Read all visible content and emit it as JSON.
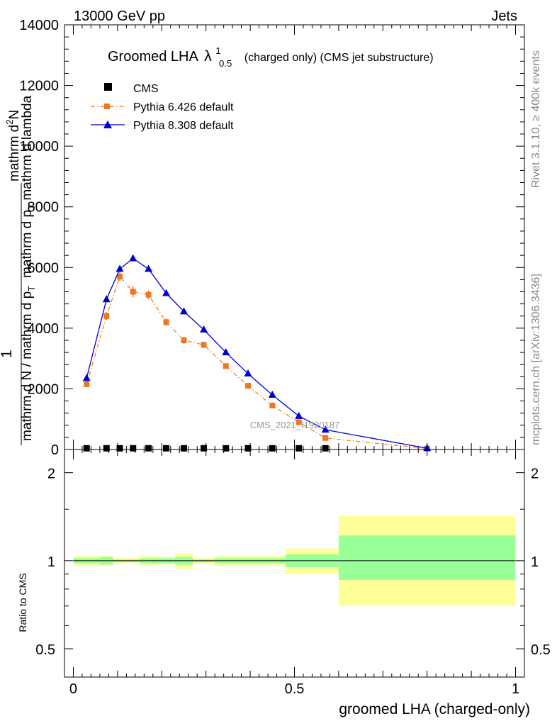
{
  "header": {
    "energy_label": "13000 GeV pp",
    "category_label": "Jets"
  },
  "title": {
    "prefix": "Groomed LHA",
    "symbol": "λ",
    "superscript": "1",
    "subscript": "0.5",
    "suffix": "(charged only) (CMS jet substructure)"
  },
  "side_labels": {
    "rivet": "Rivet 3.1.10, ≥ 400k events",
    "mcplots": "mcplots.cern.ch [arXiv:1306.3436]"
  },
  "watermark": "CMS_2021_I1920187",
  "y_axis_label": {
    "numerator_line1": "mathrm d",
    "numerator_line2": "mathrm d p",
    "numerator_sub": "T",
    "numerator_tail": " mathrm d lambda",
    "numerator_sup": "2",
    "numerator_N": "N",
    "numerator_one": "1",
    "denominator": "mathrm d N / mathrm d p",
    "denominator_sub": "T"
  },
  "x_axis_label": "groomed LHA (charged-only)",
  "ratio_y_label": "Ratio to CMS",
  "colors": {
    "cms": "#000000",
    "pythia6": "#ee7722",
    "pythia8": "#0000cc",
    "band_outer": "#ffff99",
    "band_inner": "#99ff99",
    "watermark": "#999999",
    "side_text": "#888888"
  },
  "chart_data": [
    {
      "type": "line",
      "panel": "main",
      "xlim": [
        -0.02,
        1.02
      ],
      "ylim": [
        0,
        14000
      ],
      "y_ticks": [
        0,
        2000,
        4000,
        6000,
        8000,
        10000,
        12000,
        14000
      ],
      "y_tick_labels": [
        "0",
        "2000",
        "4000",
        "6000",
        "8000",
        "10000",
        "12000",
        "14000"
      ],
      "legend_position": "top-left",
      "series": [
        {
          "name": "CMS",
          "marker": "square",
          "x": [
            0.03,
            0.075,
            0.105,
            0.135,
            0.17,
            0.21,
            0.25,
            0.295,
            0.345,
            0.395,
            0.45,
            0.51,
            0.57
          ],
          "values": [
            40,
            40,
            40,
            40,
            40,
            40,
            40,
            40,
            40,
            40,
            40,
            40,
            40
          ]
        },
        {
          "name": "Pythia 6.426 default",
          "marker": "square",
          "style": "dash-dot",
          "x": [
            0.03,
            0.075,
            0.105,
            0.135,
            0.17,
            0.21,
            0.25,
            0.295,
            0.345,
            0.395,
            0.45,
            0.51,
            0.57,
            0.8
          ],
          "values": [
            2150,
            4400,
            5700,
            5200,
            5100,
            4200,
            3600,
            3450,
            2750,
            2100,
            1450,
            900,
            380,
            30
          ],
          "errors": [
            80,
            130,
            150,
            180,
            150,
            130,
            120,
            110,
            90,
            80,
            60,
            50,
            30,
            10
          ]
        },
        {
          "name": "Pythia 8.308 default",
          "marker": "triangle",
          "style": "solid",
          "x": [
            0.03,
            0.075,
            0.105,
            0.135,
            0.17,
            0.21,
            0.25,
            0.295,
            0.345,
            0.395,
            0.45,
            0.51,
            0.57,
            0.8
          ],
          "values": [
            2350,
            4950,
            5950,
            6300,
            5950,
            5150,
            4550,
            3950,
            3200,
            2500,
            1800,
            1100,
            650,
            40
          ]
        }
      ]
    },
    {
      "type": "area",
      "panel": "ratio",
      "ylabel": "Ratio to CMS",
      "xlabel": "groomed LHA (charged-only)",
      "xlim": [
        -0.02,
        1.02
      ],
      "ylim": [
        0.4,
        2.4
      ],
      "y_ticks": [
        0.5,
        1,
        2
      ],
      "y_tick_labels": [
        "0.5",
        "1",
        "2"
      ],
      "x_ticks": [
        0,
        0.5,
        1
      ],
      "x_tick_labels": [
        "0",
        "0.5",
        "1"
      ],
      "reference_line": 1,
      "bins": [
        {
          "x0": 0.0,
          "x1": 0.06,
          "outer": [
            0.96,
            1.04
          ],
          "inner": [
            0.98,
            1.02
          ]
        },
        {
          "x0": 0.06,
          "x1": 0.09,
          "outer": [
            0.96,
            1.04
          ],
          "inner": [
            0.97,
            1.03
          ]
        },
        {
          "x0": 0.09,
          "x1": 0.12,
          "outer": [
            0.98,
            1.02
          ],
          "inner": [
            0.99,
            1.01
          ]
        },
        {
          "x0": 0.12,
          "x1": 0.15,
          "outer": [
            0.98,
            1.02
          ],
          "inner": [
            0.99,
            1.01
          ]
        },
        {
          "x0": 0.15,
          "x1": 0.19,
          "outer": [
            0.96,
            1.04
          ],
          "inner": [
            0.98,
            1.02
          ]
        },
        {
          "x0": 0.19,
          "x1": 0.23,
          "outer": [
            0.97,
            1.03
          ],
          "inner": [
            0.98,
            1.02
          ]
        },
        {
          "x0": 0.23,
          "x1": 0.27,
          "outer": [
            0.94,
            1.06
          ],
          "inner": [
            0.97,
            1.03
          ]
        },
        {
          "x0": 0.27,
          "x1": 0.32,
          "outer": [
            0.98,
            1.02
          ],
          "inner": [
            0.99,
            1.01
          ]
        },
        {
          "x0": 0.32,
          "x1": 0.37,
          "outer": [
            0.96,
            1.04
          ],
          "inner": [
            0.98,
            1.02
          ]
        },
        {
          "x0": 0.37,
          "x1": 0.42,
          "outer": [
            0.96,
            1.04
          ],
          "inner": [
            0.98,
            1.02
          ]
        },
        {
          "x0": 0.42,
          "x1": 0.48,
          "outer": [
            0.96,
            1.04
          ],
          "inner": [
            0.98,
            1.02
          ]
        },
        {
          "x0": 0.48,
          "x1": 0.54,
          "outer": [
            0.9,
            1.1
          ],
          "inner": [
            0.95,
            1.05
          ]
        },
        {
          "x0": 0.54,
          "x1": 0.6,
          "outer": [
            0.9,
            1.1
          ],
          "inner": [
            0.95,
            1.05
          ]
        },
        {
          "x0": 0.6,
          "x1": 1.0,
          "outer": [
            0.7,
            1.42
          ],
          "inner": [
            0.86,
            1.22
          ]
        }
      ]
    }
  ]
}
